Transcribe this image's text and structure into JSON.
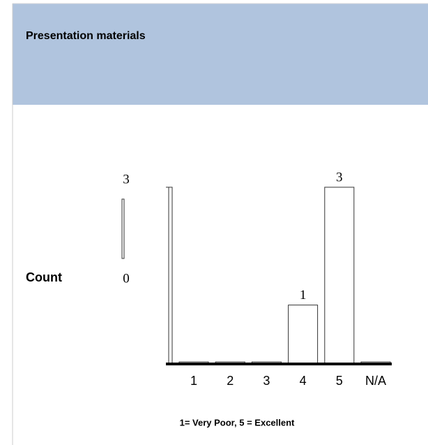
{
  "chart_data": {
    "type": "bar",
    "title": "Presentation materials",
    "ylabel": "Count",
    "xlabel": "1= Very Poor, 5 = Excellent",
    "categories": [
      "1",
      "2",
      "3",
      "4",
      "5",
      "N/A"
    ],
    "values": [
      0,
      0,
      0,
      1,
      3,
      0
    ],
    "ylim": [
      0,
      3
    ],
    "yticks": [
      0,
      3
    ],
    "color": "#ffffff",
    "header_color": "#b0c4de"
  }
}
